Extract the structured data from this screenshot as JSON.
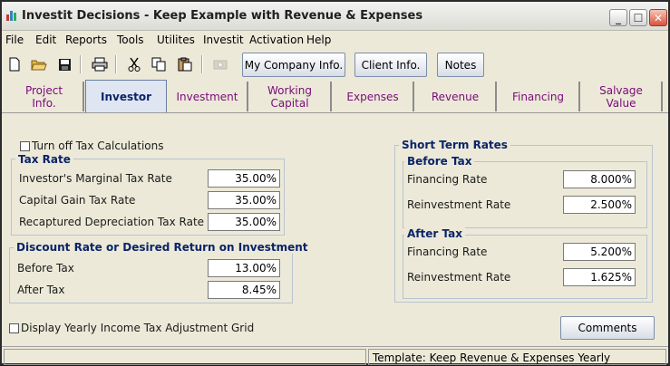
{
  "window": {
    "title": "Investit Decisions  - Keep Example with Revenue & Expenses"
  },
  "menu": [
    "File",
    "Edit",
    "Reports",
    "Tools",
    "Utilites",
    "Investit",
    "Activation",
    "Help"
  ],
  "toolbar": {
    "my_company": "My Company Info.",
    "client": "Client Info.",
    "notes": "Notes"
  },
  "tabs": [
    {
      "label": "Project\nInfo."
    },
    {
      "label": "Investor"
    },
    {
      "label": "Investment"
    },
    {
      "label": "Working\nCapital"
    },
    {
      "label": "Expenses"
    },
    {
      "label": "Revenue"
    },
    {
      "label": "Financing"
    },
    {
      "label": "Salvage\nValue"
    }
  ],
  "investor": {
    "turn_off_tax": "Turn off Tax Calculations",
    "tax_rate": {
      "title": "Tax Rate",
      "marginal_label": "Investor's Marginal Tax Rate",
      "marginal_value": "35.00%",
      "capital_gain_label": "Capital Gain Tax Rate",
      "capital_gain_value": "35.00%",
      "recaptured_label": "Recaptured Depreciation Tax Rate",
      "recaptured_value": "35.00%"
    },
    "discount": {
      "title": "Discount Rate or Desired Return on Investment",
      "before_label": "Before Tax",
      "before_value": "13.00%",
      "after_label": "After Tax",
      "after_value": "8.45%"
    },
    "short_term": {
      "title": "Short Term Rates",
      "before_tax": {
        "title": "Before Tax",
        "financing_label": "Financing Rate",
        "financing_value": "8.000%",
        "reinvestment_label": "Reinvestment Rate",
        "reinvestment_value": "2.500%"
      },
      "after_tax": {
        "title": "After Tax",
        "financing_label": "Financing Rate",
        "financing_value": "5.200%",
        "reinvestment_label": "Reinvestment Rate",
        "reinvestment_value": "1.625%"
      }
    },
    "display_grid": "Display Yearly Income Tax Adjustment Grid",
    "comments": "Comments"
  },
  "status": {
    "template": "Template: Keep Revenue & Expenses Yearly"
  }
}
